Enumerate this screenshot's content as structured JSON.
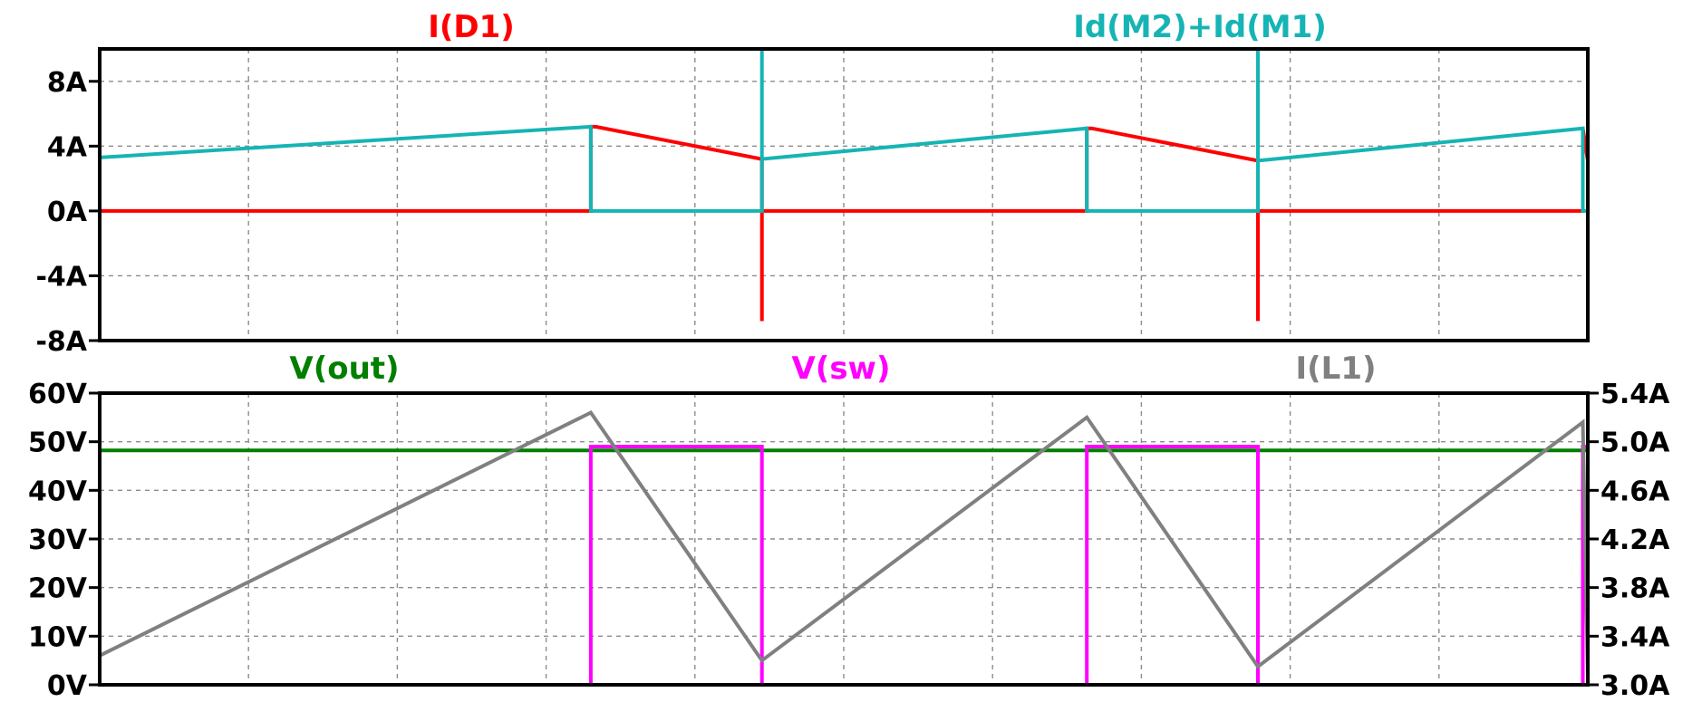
{
  "chart_data": [
    {
      "type": "line",
      "panel": "top",
      "ylim": [
        -8,
        10
      ],
      "yticks": [
        -8,
        -4,
        0,
        4,
        8
      ],
      "ytick_labels": [
        "-8A",
        "-4A",
        "0A",
        "4A",
        "8A"
      ],
      "grid": true,
      "x_unit": "switching periods (no x-axis labels shown)",
      "xlim": [
        0,
        3
      ],
      "series": [
        {
          "name": "I(D1)",
          "color": "#ff0000",
          "x": [
            0,
            0.99,
            0.99,
            1.0,
            1.0,
            1.335,
            1.335,
            1.335,
            1.99,
            1.99,
            2.0,
            2.0,
            2.335,
            2.335,
            2.335,
            2.99,
            2.99,
            3.0
          ],
          "y": [
            0,
            0,
            5.2,
            5.2,
            5.2,
            3.2,
            -6.8,
            0,
            0,
            5.1,
            5.1,
            5.1,
            3.1,
            -6.8,
            0,
            0,
            5.1,
            3.1
          ]
        },
        {
          "name": "Id(M2)+Id(M1)",
          "color": "#16b4b4",
          "x": [
            0,
            0.99,
            0.99,
            1.335,
            1.335,
            1.335,
            1.99,
            1.99,
            2.335,
            2.335,
            2.335,
            2.99,
            2.99,
            3.0
          ],
          "y": [
            3.3,
            5.2,
            0,
            0,
            10,
            3.2,
            5.1,
            0,
            0,
            10,
            3.1,
            5.1,
            0,
            0
          ]
        }
      ]
    },
    {
      "type": "line",
      "panel": "bottom",
      "ylim": [
        0,
        60
      ],
      "yticks": [
        0,
        10,
        20,
        30,
        40,
        50,
        60
      ],
      "ytick_labels": [
        "0V",
        "10V",
        "20V",
        "30V",
        "40V",
        "50V",
        "60V"
      ],
      "y2lim": [
        3.0,
        5.4
      ],
      "y2ticks": [
        3.0,
        3.4,
        3.8,
        4.2,
        4.6,
        5.0,
        5.4
      ],
      "y2tick_labels": [
        "3.0A",
        "3.4A",
        "3.8A",
        "4.2A",
        "4.6A",
        "5.0A",
        "5.4A"
      ],
      "grid": true,
      "xlim": [
        0,
        3
      ],
      "series": [
        {
          "name": "V(out)",
          "color": "#007f00",
          "axis": "left",
          "x": [
            0,
            3
          ],
          "y": [
            48.2,
            48.2
          ]
        },
        {
          "name": "V(sw)",
          "color": "#ff00ff",
          "axis": "left",
          "x": [
            0,
            0.99,
            0.99,
            1.335,
            1.335,
            1.99,
            1.99,
            2.335,
            2.335,
            2.99,
            2.99,
            3.0
          ],
          "y": [
            0,
            0,
            49,
            49,
            0,
            0,
            49,
            49,
            0,
            0,
            49,
            49
          ]
        },
        {
          "name": "I(L1)",
          "color": "#808080",
          "axis": "right",
          "x": [
            0,
            0.99,
            1.335,
            1.99,
            2.335,
            2.99,
            3.0
          ],
          "y": [
            3.24,
            5.24,
            3.2,
            5.2,
            3.15,
            5.16,
            3.05
          ]
        }
      ]
    }
  ]
}
